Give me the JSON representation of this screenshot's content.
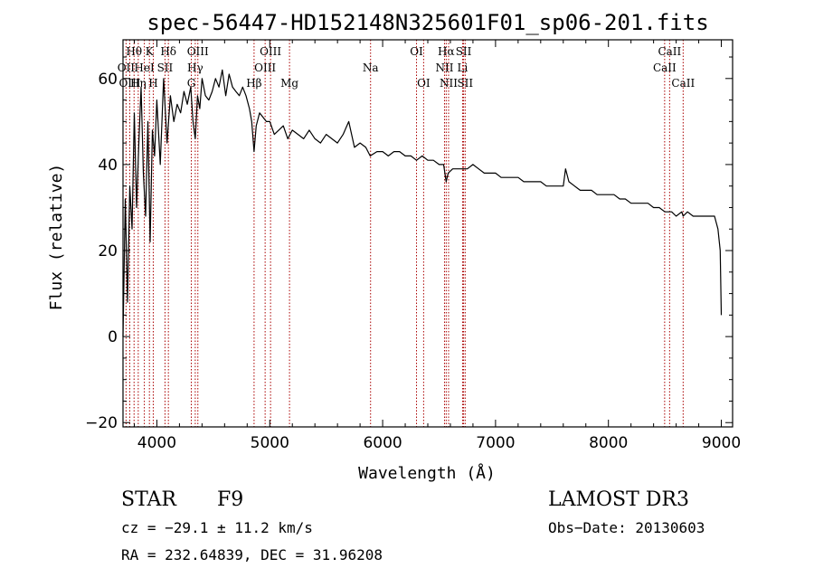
{
  "chart_data": {
    "type": "line",
    "title": "spec-56447-HD152148N325601F01_sp06-201.fits",
    "xlabel": "Wavelength (Å)",
    "ylabel": "Flux (relative)",
    "xlim": [
      3700,
      9100
    ],
    "ylim": [
      -21,
      69
    ],
    "xticks": [
      4000,
      5000,
      6000,
      7000,
      8000,
      9000
    ],
    "yticks": [
      -20,
      0,
      20,
      40,
      60
    ],
    "xtick_labels": [
      "4000",
      "5000",
      "6000",
      "7000",
      "8000",
      "9000"
    ],
    "ytick_labels": [
      "−20",
      "0",
      "20",
      "40",
      "60"
    ],
    "grid": false,
    "line_color": "#000000",
    "marker_color": "#aa0000",
    "spectrum": {
      "wavelength": [
        3700,
        3720,
        3740,
        3760,
        3780,
        3800,
        3820,
        3840,
        3860,
        3880,
        3900,
        3920,
        3940,
        3960,
        3980,
        4000,
        4030,
        4060,
        4090,
        4120,
        4150,
        4180,
        4210,
        4240,
        4270,
        4300,
        4320,
        4340,
        4360,
        4380,
        4400,
        4430,
        4460,
        4490,
        4520,
        4550,
        4580,
        4610,
        4640,
        4670,
        4700,
        4730,
        4760,
        4790,
        4820,
        4840,
        4861,
        4880,
        4910,
        4940,
        4970,
        5000,
        5040,
        5080,
        5120,
        5160,
        5200,
        5250,
        5300,
        5350,
        5400,
        5450,
        5500,
        5550,
        5600,
        5650,
        5700,
        5750,
        5800,
        5850,
        5890,
        5950,
        6000,
        6050,
        6100,
        6150,
        6200,
        6250,
        6300,
        6350,
        6400,
        6450,
        6500,
        6540,
        6563,
        6580,
        6620,
        6660,
        6700,
        6750,
        6800,
        6850,
        6900,
        6950,
        7000,
        7050,
        7100,
        7150,
        7200,
        7250,
        7300,
        7350,
        7400,
        7450,
        7500,
        7550,
        7600,
        7620,
        7650,
        7700,
        7750,
        7800,
        7850,
        7900,
        7950,
        8000,
        8050,
        8100,
        8150,
        8200,
        8250,
        8300,
        8350,
        8400,
        8450,
        8500,
        8542,
        8560,
        8600,
        8650,
        8662,
        8700,
        8750,
        8800,
        8850,
        8900,
        8940,
        8970,
        8990,
        9000
      ],
      "flux": [
        0,
        32,
        8,
        35,
        25,
        52,
        30,
        45,
        58,
        38,
        28,
        50,
        22,
        48,
        42,
        55,
        40,
        60,
        45,
        56,
        50,
        54,
        52,
        57,
        54,
        58,
        50,
        46,
        56,
        53,
        60,
        56,
        55,
        57,
        60,
        58,
        62,
        56,
        61,
        58,
        57,
        56,
        58,
        56,
        53,
        50,
        43,
        49,
        52,
        51,
        50,
        50,
        47,
        48,
        49,
        46,
        48,
        47,
        46,
        48,
        46,
        45,
        47,
        46,
        45,
        47,
        50,
        44,
        45,
        44,
        42,
        43,
        43,
        42,
        43,
        43,
        42,
        42,
        41,
        42,
        41,
        41,
        40,
        40,
        36,
        38,
        39,
        39,
        39,
        39,
        40,
        39,
        38,
        38,
        38,
        37,
        37,
        37,
        37,
        36,
        36,
        36,
        36,
        35,
        35,
        35,
        35,
        39,
        36,
        35,
        34,
        34,
        34,
        33,
        33,
        33,
        33,
        32,
        32,
        31,
        31,
        31,
        31,
        30,
        30,
        29,
        29,
        29,
        28,
        29,
        28,
        29,
        28,
        28,
        28,
        28,
        28,
        25,
        20,
        5
      ]
    },
    "line_markers": [
      {
        "label": "Hθ",
        "wavelength": 3798,
        "row": 1
      },
      {
        "label": "OII",
        "wavelength": 3727,
        "row": 2
      },
      {
        "label": "Hη",
        "wavelength": 3835,
        "row": 3
      },
      {
        "label": "OIII",
        "wavelength": 3760,
        "row": 3
      },
      {
        "label": "K",
        "wavelength": 3934,
        "row": 1
      },
      {
        "label": "HeI",
        "wavelength": 3889,
        "row": 2
      },
      {
        "label": "H",
        "wavelength": 3968,
        "row": 3
      },
      {
        "label": "Hδ",
        "wavelength": 4102,
        "row": 1
      },
      {
        "label": "SII",
        "wavelength": 4072,
        "row": 2
      },
      {
        "label": "OIII",
        "wavelength": 4363,
        "row": 1
      },
      {
        "label": "Hγ",
        "wavelength": 4340,
        "row": 2
      },
      {
        "label": "G",
        "wavelength": 4305,
        "row": 3
      },
      {
        "label": "Hβ",
        "wavelength": 4861,
        "row": 3
      },
      {
        "label": "OIII",
        "wavelength": 5007,
        "row": 1
      },
      {
        "label": "OIII",
        "wavelength": 4959,
        "row": 2
      },
      {
        "label": "Mg",
        "wavelength": 5175,
        "row": 3
      },
      {
        "label": "Na",
        "wavelength": 5893,
        "row": 2
      },
      {
        "label": "OI",
        "wavelength": 6300,
        "row": 1
      },
      {
        "label": "OI",
        "wavelength": 6363,
        "row": 3
      },
      {
        "label": "Hα",
        "wavelength": 6563,
        "row": 1
      },
      {
        "label": "NII",
        "wavelength": 6548,
        "row": 2
      },
      {
        "label": "NII",
        "wavelength": 6584,
        "row": 3
      },
      {
        "label": "SII",
        "wavelength": 6717,
        "row": 1
      },
      {
        "label": "Li",
        "wavelength": 6708,
        "row": 2
      },
      {
        "label": "SII",
        "wavelength": 6731,
        "row": 3
      },
      {
        "label": "CaII",
        "wavelength": 8542,
        "row": 1
      },
      {
        "label": "CaII",
        "wavelength": 8498,
        "row": 2
      },
      {
        "label": "CaII",
        "wavelength": 8662,
        "row": 3
      }
    ]
  },
  "info": {
    "object_class": "STAR",
    "subclass": "F9",
    "survey": "LAMOST DR3",
    "cz": "cz = −29.1 ± 11.2 km/s",
    "obs_date": "Obs−Date: 20130603",
    "coords": "RA = 232.64839, DEC =  31.96208"
  }
}
